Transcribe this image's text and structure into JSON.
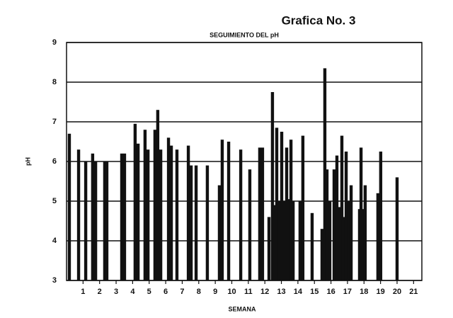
{
  "chart_data": {
    "type": "bar",
    "title": "Grafica No. 3",
    "subtitle": "SEGUIMIENTO DEL pH",
    "xlabel": "SEMANA",
    "ylabel": "pH",
    "color": "#111111",
    "grid": true,
    "xlim": [
      0,
      21.5
    ],
    "ylim": [
      3,
      9
    ],
    "xticks": [
      1,
      2,
      3,
      4,
      5,
      6,
      7,
      8,
      9,
      10,
      11,
      12,
      13,
      14,
      15,
      16,
      17,
      18,
      19,
      20,
      21
    ],
    "yticks": [
      3,
      4,
      5,
      6,
      7,
      8,
      9
    ],
    "x": [
      0.17,
      0.73,
      1.16,
      1.58,
      1.76,
      2.31,
      2.44,
      3.34,
      3.51,
      4.15,
      4.33,
      4.75,
      4.93,
      5.35,
      5.52,
      5.7,
      6.17,
      6.34,
      6.68,
      7.37,
      7.54,
      7.84,
      8.52,
      9.25,
      9.42,
      9.81,
      10.54,
      11.09,
      11.69,
      11.86,
      12.25,
      12.46,
      12.59,
      12.72,
      12.85,
      13.02,
      13.15,
      13.32,
      13.45,
      13.58,
      13.71,
      14.13,
      14.3,
      14.86,
      15.46,
      15.63,
      15.76,
      15.93,
      16.19,
      16.36,
      16.53,
      16.66,
      16.75,
      16.92,
      17.09,
      17.22,
      17.73,
      17.82,
      17.99,
      18.07,
      18.84,
      19.01,
      20.0
    ],
    "values": [
      6.7,
      6.3,
      6.0,
      6.2,
      6.0,
      6.0,
      6.0,
      6.2,
      6.2,
      6.95,
      6.45,
      6.8,
      6.3,
      6.8,
      7.3,
      6.3,
      6.6,
      6.4,
      6.3,
      6.4,
      5.9,
      5.9,
      5.9,
      5.4,
      6.55,
      6.5,
      6.3,
      5.8,
      6.35,
      6.35,
      4.6,
      7.75,
      4.9,
      6.85,
      5.0,
      6.75,
      5.0,
      6.35,
      5.05,
      6.55,
      5.0,
      5.0,
      6.65,
      4.7,
      4.3,
      8.35,
      5.8,
      5.0,
      5.8,
      6.15,
      4.85,
      6.65,
      4.6,
      6.25,
      5.0,
      5.4,
      4.8,
      6.35,
      4.8,
      5.4,
      5.2,
      6.25,
      5.6
    ]
  }
}
